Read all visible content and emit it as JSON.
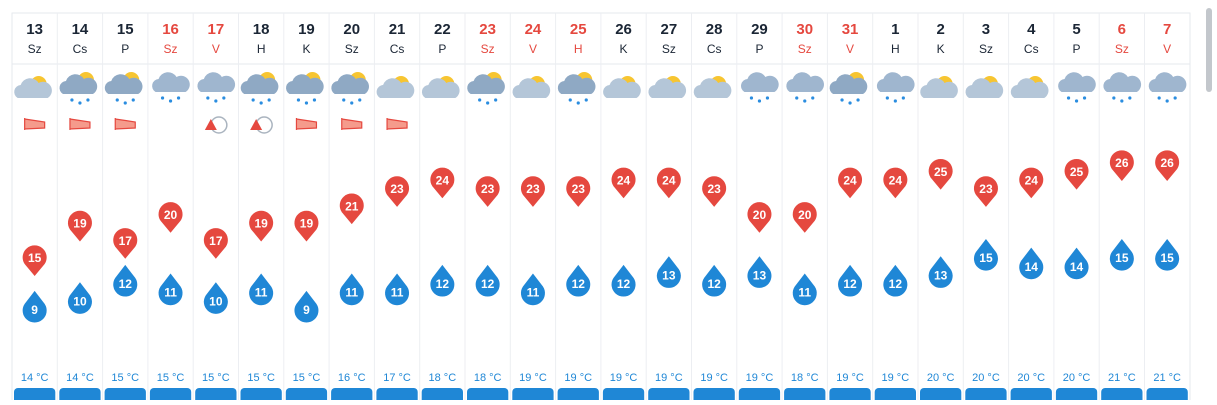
{
  "days": [
    {
      "day": "13",
      "weekday": "Sz",
      "color": "#1b2635",
      "max": 15,
      "min": 9,
      "water": "14 °C"
    },
    {
      "day": "14",
      "weekday": "Cs",
      "color": "#1b2635",
      "max": 19,
      "min": 10,
      "water": "14 °C"
    },
    {
      "day": "15",
      "weekday": "P",
      "color": "#1b2635",
      "max": 17,
      "min": 12,
      "water": "15 °C"
    },
    {
      "day": "16",
      "weekday": "Sz",
      "color": "#e5483f",
      "max": 20,
      "min": 11,
      "water": "15 °C"
    },
    {
      "day": "17",
      "weekday": "V",
      "color": "#e5483f",
      "max": 17,
      "min": 10,
      "water": "15 °C"
    },
    {
      "day": "18",
      "weekday": "H",
      "color": "#1b2635",
      "max": 19,
      "min": 11,
      "water": "15 °C"
    },
    {
      "day": "19",
      "weekday": "K",
      "color": "#1b2635",
      "max": 19,
      "min": 9,
      "water": "15 °C"
    },
    {
      "day": "20",
      "weekday": "Sz",
      "color": "#1b2635",
      "max": 21,
      "min": 11,
      "water": "16 °C"
    },
    {
      "day": "21",
      "weekday": "Cs",
      "color": "#1b2635",
      "max": 23,
      "min": 11,
      "water": "17 °C"
    },
    {
      "day": "22",
      "weekday": "P",
      "color": "#1b2635",
      "max": 24,
      "min": 12,
      "water": "18 °C"
    },
    {
      "day": "23",
      "weekday": "Sz",
      "color": "#e5483f",
      "max": 23,
      "min": 12,
      "water": "18 °C"
    },
    {
      "day": "24",
      "weekday": "V",
      "color": "#e5483f",
      "max": 23,
      "min": 11,
      "water": "19 °C"
    },
    {
      "day": "25",
      "weekday": "H",
      "color": "#e5483f",
      "max": 23,
      "min": 12,
      "water": "19 °C"
    },
    {
      "day": "26",
      "weekday": "K",
      "color": "#1b2635",
      "max": 24,
      "min": 12,
      "water": "19 °C"
    },
    {
      "day": "27",
      "weekday": "Sz",
      "color": "#1b2635",
      "max": 24,
      "min": 13,
      "water": "19 °C"
    },
    {
      "day": "28",
      "weekday": "Cs",
      "color": "#1b2635",
      "max": 23,
      "min": 12,
      "water": "19 °C"
    },
    {
      "day": "29",
      "weekday": "P",
      "color": "#1b2635",
      "max": 20,
      "min": 13,
      "water": "19 °C"
    },
    {
      "day": "30",
      "weekday": "Sz",
      "color": "#e5483f",
      "max": 20,
      "min": 11,
      "water": "18 °C"
    },
    {
      "day": "31",
      "weekday": "V",
      "color": "#e5483f",
      "max": 24,
      "min": 12,
      "water": "19 °C"
    },
    {
      "day": "1",
      "weekday": "H",
      "color": "#1b2635",
      "max": 24,
      "min": 12,
      "water": "19 °C"
    },
    {
      "day": "2",
      "weekday": "K",
      "color": "#1b2635",
      "max": 25,
      "min": 13,
      "water": "20 °C"
    },
    {
      "day": "3",
      "weekday": "Sz",
      "color": "#1b2635",
      "max": 23,
      "min": 15,
      "water": "20 °C"
    },
    {
      "day": "4",
      "weekday": "Cs",
      "color": "#1b2635",
      "max": 24,
      "min": 14,
      "water": "20 °C"
    },
    {
      "day": "5",
      "weekday": "P",
      "color": "#1b2635",
      "max": 25,
      "min": 14,
      "water": "20 °C"
    },
    {
      "day": "6",
      "weekday": "Sz",
      "color": "#e5483f",
      "max": 26,
      "min": 15,
      "water": "21 °C"
    },
    {
      "day": "7",
      "weekday": "V",
      "color": "#e5483f",
      "max": 26,
      "min": 15,
      "water": "21 °C"
    }
  ]
}
